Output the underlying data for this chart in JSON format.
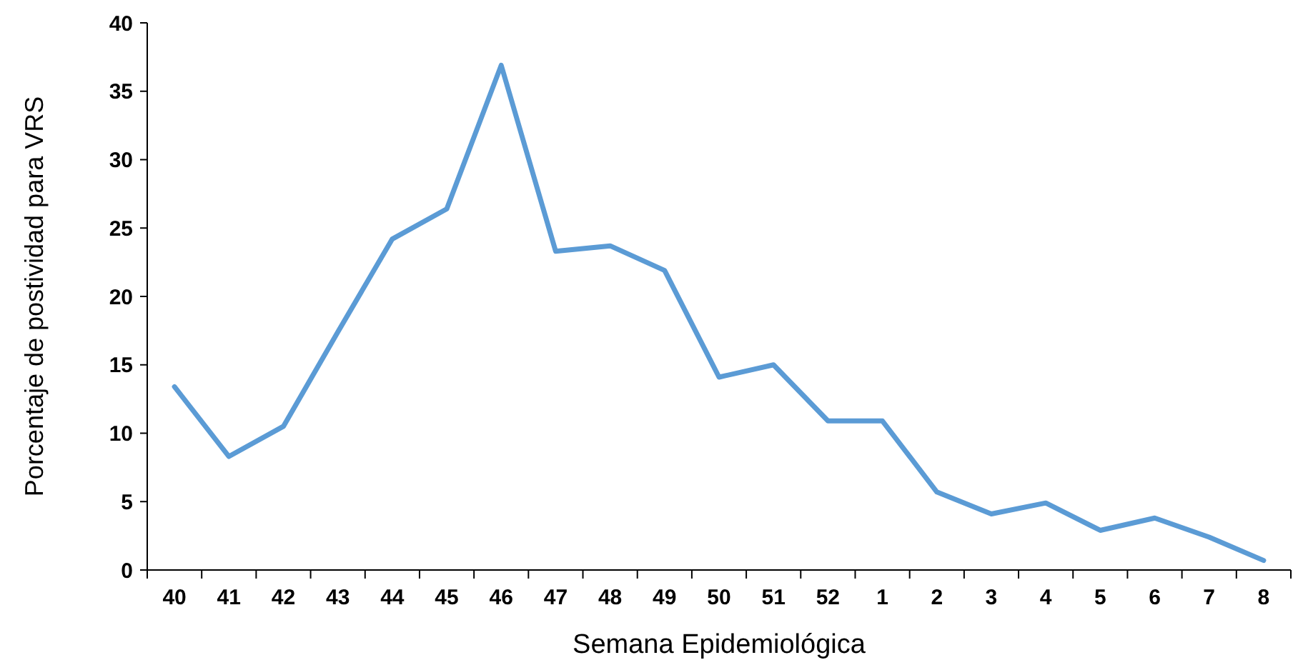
{
  "chart_data": {
    "type": "line",
    "xlabel": "Semana Epidemiológica",
    "ylabel": "Porcentaje de postividad para VRS",
    "categories": [
      "40",
      "41",
      "42",
      "43",
      "44",
      "45",
      "46",
      "47",
      "48",
      "49",
      "50",
      "51",
      "52",
      "1",
      "2",
      "3",
      "4",
      "5",
      "6",
      "7",
      "8"
    ],
    "series": [
      {
        "color": "#5b9bd5",
        "values": [
          13.4,
          8.3,
          10.5,
          17.4,
          24.2,
          26.4,
          36.9,
          23.3,
          23.7,
          21.9,
          14.1,
          15.0,
          10.9,
          10.9,
          5.7,
          4.1,
          4.9,
          2.9,
          3.8,
          2.4,
          0.7
        ]
      }
    ],
    "ylim": [
      0,
      40
    ],
    "yticks": [
      0,
      5,
      10,
      15,
      20,
      25,
      30,
      35,
      40
    ],
    "grid": false,
    "marker": "none",
    "line_style": "solid"
  }
}
